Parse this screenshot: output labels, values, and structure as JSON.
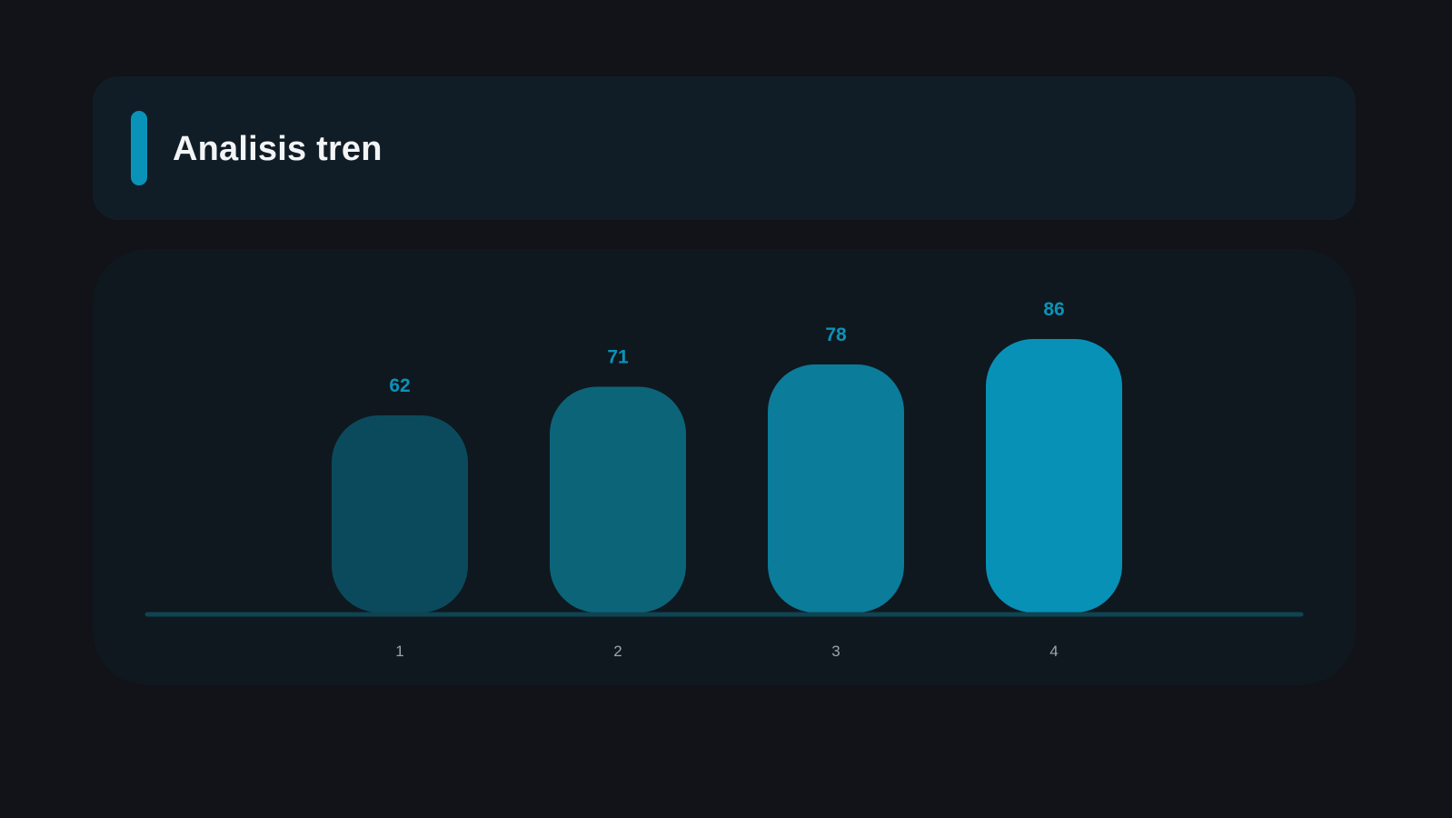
{
  "header": {
    "title": "Analisis tren",
    "accent_color": "#0a93b8"
  },
  "chart_data": {
    "type": "bar",
    "categories": [
      "1",
      "2",
      "3",
      "4"
    ],
    "values": [
      62,
      71,
      78,
      86
    ],
    "data_labels": [
      "62",
      "71",
      "78",
      "86"
    ],
    "title": "Analisis tren",
    "xlabel": "",
    "ylabel": "",
    "ylim": [
      0,
      100
    ],
    "grid": false,
    "legend": "none",
    "bar_colors": [
      "#0b4a5c",
      "#0c6479",
      "#0b7c9a",
      "#0891b7"
    ],
    "value_label_color": "#0a93b8",
    "baseline_color": "#0f4452"
  }
}
